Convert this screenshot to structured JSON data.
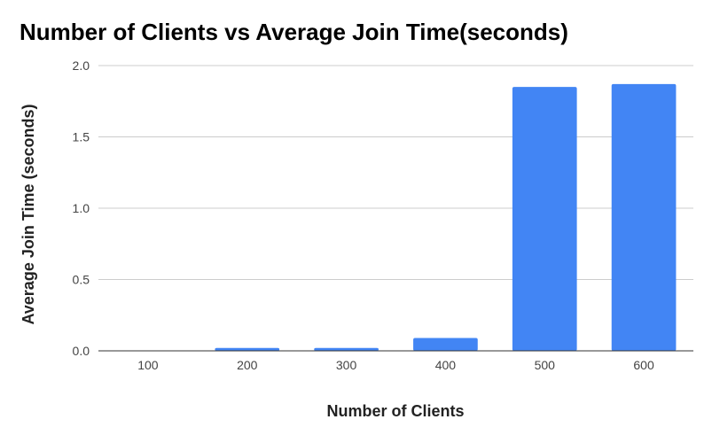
{
  "chart_data": {
    "type": "bar",
    "title": "Number of Clients vs Average Join Time(seconds)",
    "xlabel": "Number of Clients",
    "ylabel": "Average Join Time (seconds)",
    "categories": [
      "100",
      "200",
      "300",
      "400",
      "500",
      "600"
    ],
    "values": [
      0.0,
      0.02,
      0.02,
      0.09,
      1.85,
      1.87
    ],
    "ylim": [
      0,
      2.0
    ],
    "yticks": [
      "0.0",
      "0.5",
      "1.0",
      "1.5",
      "2.0"
    ],
    "ytick_values": [
      0,
      0.5,
      1.0,
      1.5,
      2.0
    ],
    "grid": true,
    "legend": "none",
    "bar_color": "#4285F4"
  }
}
